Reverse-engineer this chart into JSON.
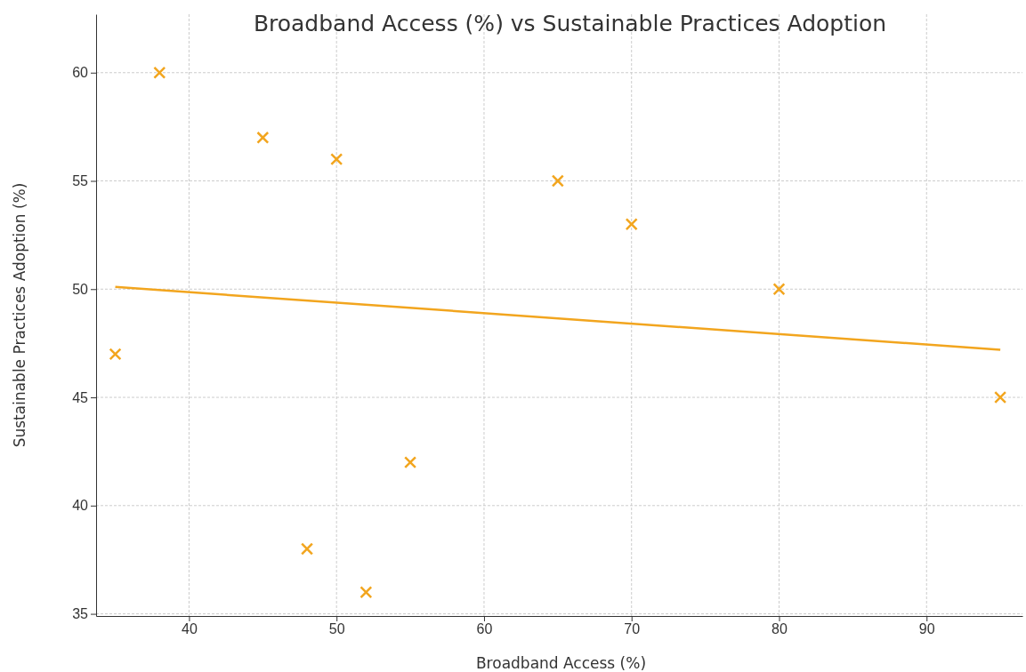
{
  "chart_data": {
    "type": "scatter",
    "title": "Broadband Access (%) vs Sustainable Practices Adoption",
    "xlabel": "Broadband Access (%)",
    "ylabel": "Sustainable Practices Adoption (%)",
    "xlim": [
      33.7,
      96.5
    ],
    "ylim": [
      34.9,
      62.7
    ],
    "xticks": [
      40,
      50,
      60,
      70,
      80,
      90
    ],
    "yticks": [
      35,
      40,
      45,
      50,
      55,
      60
    ],
    "grid": true,
    "series": [
      {
        "marker": "cross",
        "color": "#f2a51e",
        "x": [
          35,
          38,
          45,
          48,
          50,
          52,
          55,
          65,
          70,
          80,
          95
        ],
        "values": [
          47,
          60,
          57,
          38,
          56,
          36,
          42,
          55,
          53,
          50,
          45
        ]
      },
      {
        "type": "line",
        "color": "#f2a51e",
        "line_style": "solid",
        "x": [
          35,
          95
        ],
        "values": [
          50.1,
          47.2
        ]
      }
    ]
  }
}
